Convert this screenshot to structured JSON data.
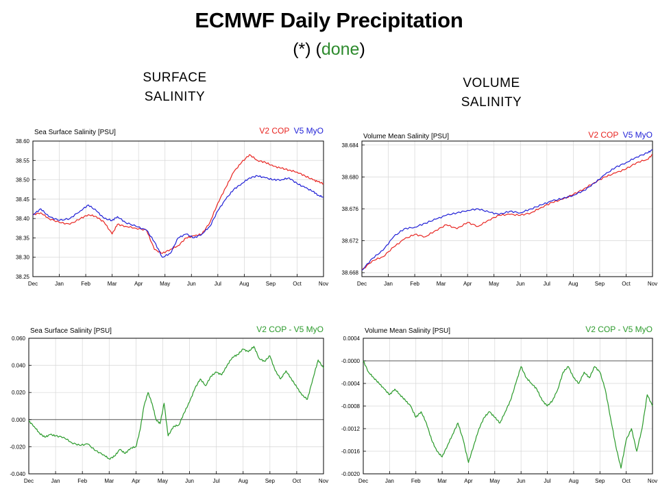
{
  "header": {
    "title": "ECMWF Daily Precipitation",
    "subtitle_prefix": "(*) (",
    "subtitle_status": "done",
    "subtitle_suffix": ")",
    "status_color": "#2e8b2e"
  },
  "columns": {
    "left_line1": "SURFACE",
    "left_line2": "SALINITY",
    "right_line1": "VOLUME",
    "right_line2": "SALINITY"
  },
  "chart_data": [
    {
      "type": "line",
      "title": "Sea Surface Salinity [PSU]",
      "xlabel": "",
      "ylabel": "",
      "categories": [
        "Dec",
        "Jan",
        "Feb",
        "Mar",
        "Apr",
        "May",
        "Jun",
        "Jul",
        "Aug",
        "Sep",
        "Oct",
        "Nov"
      ],
      "xlim": [
        0,
        11
      ],
      "ylim": [
        38.25,
        38.6
      ],
      "yticks": [
        "38.25",
        "38.30",
        "38.35",
        "38.40",
        "38.45",
        "38.50",
        "38.55",
        "38.60"
      ],
      "grid": true,
      "series": [
        {
          "name": "V2 COP",
          "color": "#e8231f",
          "x": [
            0,
            0.3,
            0.6,
            1.0,
            1.4,
            1.8,
            2.1,
            2.4,
            2.7,
            3.0,
            3.2,
            3.5,
            3.9,
            4.3,
            4.6,
            4.9,
            5.2,
            5.5,
            5.8,
            6.1,
            6.4,
            6.7,
            7.0,
            7.3,
            7.6,
            7.9,
            8.2,
            8.5,
            8.8,
            9.1,
            9.4,
            9.7,
            10.0,
            10.3,
            10.6,
            10.8,
            11.0
          ],
          "y": [
            38.41,
            38.415,
            38.4,
            38.39,
            38.385,
            38.4,
            38.41,
            38.405,
            38.39,
            38.36,
            38.385,
            38.38,
            38.375,
            38.37,
            38.32,
            38.31,
            38.32,
            38.33,
            38.35,
            38.355,
            38.36,
            38.39,
            38.44,
            38.48,
            38.52,
            38.545,
            38.565,
            38.55,
            38.545,
            38.535,
            38.53,
            38.525,
            38.52,
            38.51,
            38.5,
            38.495,
            38.49
          ]
        },
        {
          "name": "V5 MyO",
          "color": "#1f1fd6",
          "x": [
            0,
            0.3,
            0.6,
            1.0,
            1.4,
            1.8,
            2.1,
            2.4,
            2.7,
            3.0,
            3.2,
            3.5,
            3.9,
            4.3,
            4.6,
            4.9,
            5.2,
            5.5,
            5.8,
            6.1,
            6.4,
            6.7,
            7.0,
            7.3,
            7.6,
            7.9,
            8.2,
            8.5,
            8.8,
            9.1,
            9.4,
            9.7,
            10.0,
            10.3,
            10.6,
            10.8,
            11.0
          ],
          "y": [
            38.41,
            38.425,
            38.405,
            38.395,
            38.4,
            38.42,
            38.435,
            38.42,
            38.4,
            38.395,
            38.405,
            38.39,
            38.38,
            38.37,
            38.34,
            38.3,
            38.31,
            38.35,
            38.36,
            38.35,
            38.36,
            38.38,
            38.42,
            38.45,
            38.475,
            38.49,
            38.505,
            38.51,
            38.505,
            38.5,
            38.5,
            38.505,
            38.49,
            38.48,
            38.47,
            38.46,
            38.455
          ]
        }
      ]
    },
    {
      "type": "line",
      "title": "Volume Mean Salinity [PSU]",
      "xlabel": "",
      "ylabel": "",
      "categories": [
        "Dec",
        "Jan",
        "Feb",
        "Mar",
        "Apr",
        "May",
        "Jun",
        "Jul",
        "Aug",
        "Sep",
        "Oct",
        "Nov"
      ],
      "xlim": [
        0,
        11
      ],
      "ylim": [
        38.6675,
        38.6845
      ],
      "yticks": [
        "38.668",
        "38.672",
        "38.676",
        "38.680",
        "38.684"
      ],
      "grid": true,
      "series": [
        {
          "name": "V2 COP",
          "color": "#e8231f",
          "x": [
            0,
            0.4,
            0.8,
            1.2,
            1.6,
            2.0,
            2.4,
            2.8,
            3.2,
            3.6,
            4.0,
            4.4,
            4.8,
            5.2,
            5.6,
            6.0,
            6.4,
            6.8,
            7.2,
            7.6,
            8.0,
            8.4,
            8.8,
            9.2,
            9.6,
            10.0,
            10.4,
            10.8,
            11.0
          ],
          "y": [
            38.6683,
            38.6695,
            38.67,
            38.6712,
            38.6722,
            38.6728,
            38.6725,
            38.6733,
            38.674,
            38.6735,
            38.6743,
            38.6738,
            38.6746,
            38.6752,
            38.6753,
            38.6752,
            38.6755,
            38.6762,
            38.6768,
            38.6772,
            38.6778,
            38.6785,
            38.6793,
            38.68,
            38.6805,
            38.681,
            38.6818,
            38.6822,
            38.6828
          ]
        },
        {
          "name": "V5 MyO",
          "color": "#1f1fd6",
          "x": [
            0,
            0.4,
            0.8,
            1.2,
            1.6,
            2.0,
            2.4,
            2.8,
            3.2,
            3.6,
            4.0,
            4.4,
            4.8,
            5.2,
            5.6,
            6.0,
            6.4,
            6.8,
            7.2,
            7.6,
            8.0,
            8.4,
            8.8,
            9.2,
            9.6,
            10.0,
            10.4,
            10.8,
            11.0
          ],
          "y": [
            38.6683,
            38.6698,
            38.6708,
            38.6725,
            38.6735,
            38.6737,
            38.6742,
            38.6747,
            38.6752,
            38.6755,
            38.6758,
            38.676,
            38.6756,
            38.6753,
            38.6757,
            38.6755,
            38.676,
            38.6765,
            38.677,
            38.6773,
            38.6777,
            38.6783,
            38.6792,
            38.6803,
            38.6812,
            38.6818,
            38.6825,
            38.683,
            38.6834
          ]
        }
      ]
    },
    {
      "type": "line",
      "title": "Sea Surface Salinity [PSU]",
      "xlabel": "",
      "ylabel": "",
      "categories": [
        "Dec",
        "Jan",
        "Feb",
        "Mar",
        "Apr",
        "May",
        "Jun",
        "Jul",
        "Aug",
        "Sep",
        "Oct",
        "Nov"
      ],
      "xlim": [
        0,
        11
      ],
      "ylim": [
        -0.04,
        0.06
      ],
      "yticks": [
        "-0.040",
        "-0.020",
        "0.000",
        "0.020",
        "0.040",
        "0.060"
      ],
      "grid": true,
      "reference_line": 0,
      "series": [
        {
          "name": "V2 COP - V5 MyO",
          "color": "#2a9a2a",
          "x": [
            0,
            0.2,
            0.4,
            0.6,
            0.8,
            1.0,
            1.3,
            1.6,
            1.9,
            2.2,
            2.5,
            2.8,
            3.0,
            3.2,
            3.4,
            3.6,
            3.8,
            4.0,
            4.15,
            4.3,
            4.45,
            4.6,
            4.75,
            4.9,
            5.05,
            5.2,
            5.4,
            5.6,
            5.8,
            6.0,
            6.2,
            6.4,
            6.6,
            6.8,
            7.0,
            7.2,
            7.4,
            7.6,
            7.8,
            8.0,
            8.2,
            8.4,
            8.6,
            8.8,
            9.0,
            9.2,
            9.4,
            9.6,
            9.8,
            10.0,
            10.2,
            10.4,
            10.6,
            10.8,
            11.0
          ],
          "y": [
            -0.001,
            -0.005,
            -0.01,
            -0.013,
            -0.011,
            -0.012,
            -0.013,
            -0.017,
            -0.019,
            -0.018,
            -0.023,
            -0.026,
            -0.029,
            -0.027,
            -0.022,
            -0.025,
            -0.021,
            -0.02,
            -0.008,
            0.01,
            0.02,
            0.012,
            0.0,
            -0.003,
            0.012,
            -0.012,
            -0.005,
            -0.004,
            0.005,
            0.013,
            0.023,
            0.03,
            0.025,
            0.032,
            0.035,
            0.033,
            0.04,
            0.046,
            0.048,
            0.052,
            0.05,
            0.054,
            0.045,
            0.043,
            0.047,
            0.036,
            0.03,
            0.036,
            0.03,
            0.024,
            0.018,
            0.015,
            0.03,
            0.044,
            0.038
          ]
        }
      ]
    },
    {
      "type": "line",
      "title": "Volume Mean Salinity [PSU]",
      "xlabel": "",
      "ylabel": "",
      "categories": [
        "Dec",
        "Jan",
        "Feb",
        "Mar",
        "Apr",
        "May",
        "Jun",
        "Jul",
        "Aug",
        "Sep",
        "Oct",
        "Nov"
      ],
      "xlim": [
        0,
        11
      ],
      "ylim": [
        -0.002,
        0.0004
      ],
      "yticks": [
        "-0.0020",
        "-0.0016",
        "-0.0012",
        "-0.0008",
        "-0.0004",
        "-0.0000",
        "0.0004"
      ],
      "grid": true,
      "reference_line": 0,
      "series": [
        {
          "name": "V2 COP - V5 MyO",
          "color": "#2a9a2a",
          "x": [
            0,
            0.2,
            0.4,
            0.6,
            0.8,
            1.0,
            1.2,
            1.4,
            1.6,
            1.8,
            2.0,
            2.2,
            2.4,
            2.6,
            2.8,
            3.0,
            3.2,
            3.4,
            3.6,
            3.8,
            4.0,
            4.2,
            4.4,
            4.6,
            4.8,
            5.0,
            5.2,
            5.4,
            5.6,
            5.8,
            6.0,
            6.2,
            6.4,
            6.6,
            6.8,
            7.0,
            7.2,
            7.4,
            7.6,
            7.8,
            8.0,
            8.2,
            8.4,
            8.6,
            8.8,
            9.0,
            9.2,
            9.4,
            9.6,
            9.8,
            10.0,
            10.2,
            10.4,
            10.6,
            10.8,
            11.0
          ],
          "y": [
            0.0,
            -0.0002,
            -0.0003,
            -0.0004,
            -0.0005,
            -0.0006,
            -0.0005,
            -0.0006,
            -0.0007,
            -0.0008,
            -0.001,
            -0.0009,
            -0.0011,
            -0.0014,
            -0.0016,
            -0.0017,
            -0.0015,
            -0.0013,
            -0.0011,
            -0.0014,
            -0.0018,
            -0.0015,
            -0.0012,
            -0.001,
            -0.0009,
            -0.001,
            -0.0011,
            -0.0009,
            -0.0007,
            -0.0004,
            -0.0001,
            -0.0003,
            -0.0004,
            -0.0005,
            -0.0007,
            -0.0008,
            -0.0007,
            -0.0005,
            -0.0002,
            -0.0001,
            -0.0003,
            -0.0004,
            -0.0002,
            -0.0003,
            -0.0001,
            -0.0002,
            -0.0005,
            -0.001,
            -0.0015,
            -0.0019,
            -0.0014,
            -0.0012,
            -0.0016,
            -0.0012,
            -0.0006,
            -0.0008
          ]
        }
      ]
    }
  ]
}
